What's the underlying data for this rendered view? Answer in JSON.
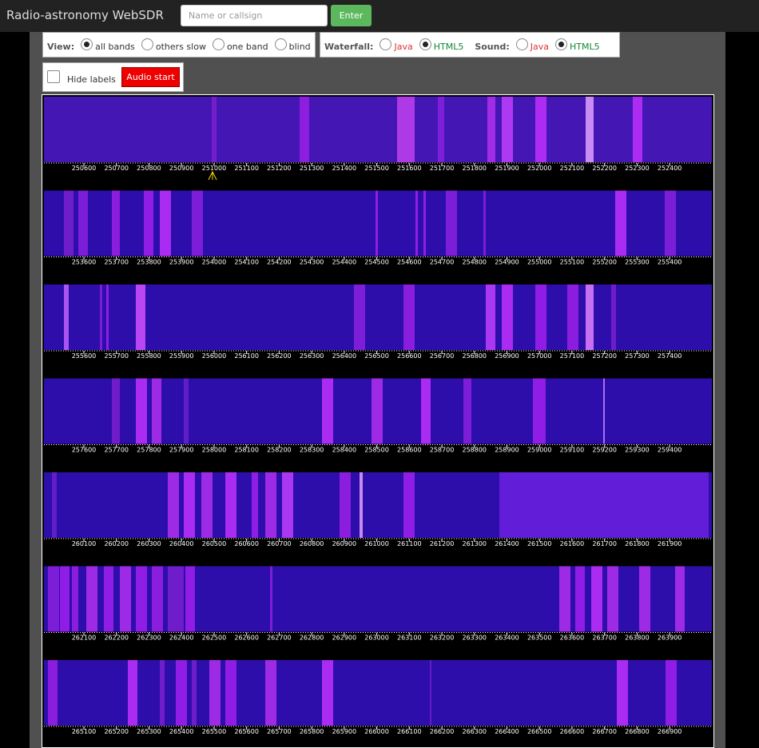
{
  "header": {
    "title": "Radio-astronomy WebSDR",
    "callsign_placeholder": "Name or callsign",
    "enter_button": "Enter"
  },
  "view": {
    "label": "View:",
    "options": [
      "all bands",
      "others slow",
      "one band",
      "blind"
    ],
    "selected": 0
  },
  "waterfall": {
    "label": "Waterfall:",
    "options": [
      "Java",
      "HTML5"
    ],
    "selected": 1
  },
  "sound": {
    "label": "Sound:",
    "options": [
      "Java",
      "HTML5"
    ],
    "selected": 1
  },
  "controls": {
    "hide_labels": "Hide labels",
    "audio_start": "Audio start"
  },
  "bands": [
    {
      "ticks": [
        250600,
        250700,
        250800,
        250900,
        251000,
        251100,
        251200,
        251300,
        251400,
        251500,
        251600,
        251700,
        251800,
        251900,
        252000,
        252100,
        252200,
        252300,
        252400
      ]
    },
    {
      "ticks": [
        253600,
        253700,
        253800,
        253900,
        254000,
        254100,
        254200,
        254300,
        254400,
        254500,
        254600,
        254700,
        254800,
        254900,
        255000,
        255100,
        255200,
        255300,
        255400
      ]
    },
    {
      "ticks": [
        255600,
        255700,
        255800,
        255900,
        256000,
        256100,
        256200,
        256300,
        256400,
        256500,
        256600,
        256700,
        256800,
        256900,
        257000,
        257100,
        257200,
        257300,
        257400
      ]
    },
    {
      "ticks": [
        257600,
        257700,
        257800,
        257900,
        258000,
        258100,
        258200,
        258300,
        258400,
        258500,
        258600,
        258700,
        258800,
        258900,
        259000,
        259100,
        259200,
        259300,
        259400
      ]
    },
    {
      "ticks": [
        260100,
        260200,
        260300,
        260400,
        260500,
        260600,
        260700,
        260800,
        260900,
        261000,
        261100,
        261200,
        261300,
        261400,
        261500,
        261600,
        261700,
        261800,
        261900
      ]
    },
    {
      "ticks": [
        262100,
        262200,
        262300,
        262400,
        262500,
        262600,
        262700,
        262800,
        262900,
        263000,
        263100,
        263200,
        263300,
        263400,
        263500,
        263600,
        263700,
        263800,
        263900
      ]
    },
    {
      "ticks": [
        265100,
        265200,
        265300,
        265400,
        265500,
        265600,
        265700,
        265800,
        265900,
        266000,
        266100,
        266200,
        266300,
        266400,
        266500,
        266600,
        266700,
        266800,
        266900
      ]
    }
  ]
}
